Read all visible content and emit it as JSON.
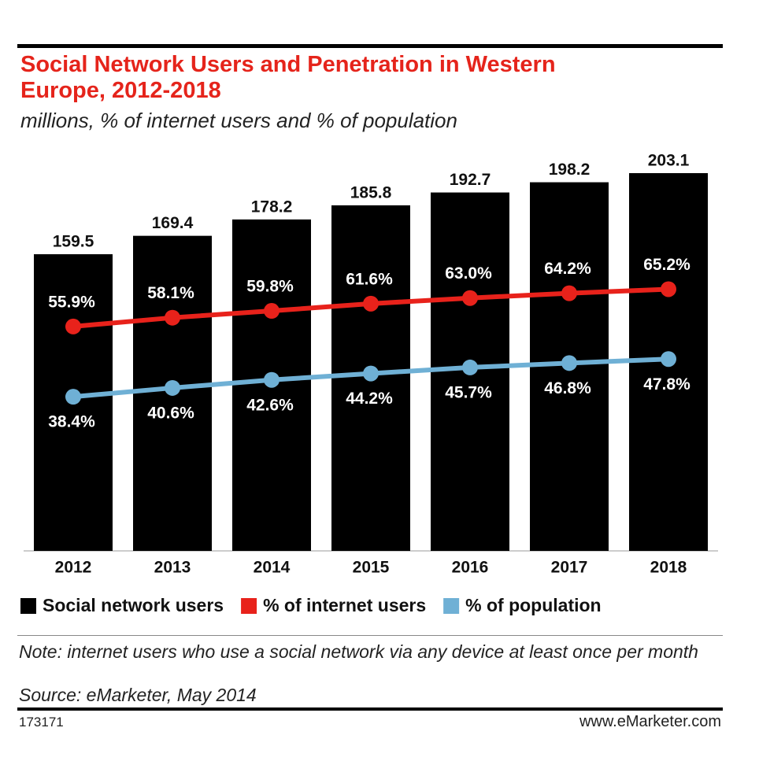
{
  "chart_data": {
    "type": "bar",
    "title": "Social Network Users and Penetration in Western Europe, 2012-2018",
    "subtitle": "millions, % of internet users and % of population",
    "categories": [
      "2012",
      "2013",
      "2014",
      "2015",
      "2016",
      "2017",
      "2018"
    ],
    "series": [
      {
        "name": "Social network users",
        "type": "bar",
        "color": "#000000",
        "values": [
          159.5,
          169.4,
          178.2,
          185.8,
          192.7,
          198.2,
          203.1
        ]
      },
      {
        "name": "% of internet users",
        "type": "line",
        "color": "#e8221b",
        "values": [
          55.9,
          58.1,
          59.8,
          61.6,
          63.0,
          64.2,
          65.2
        ],
        "value_labels": [
          "55.9%",
          "58.1%",
          "59.8%",
          "61.6%",
          "63.0%",
          "64.2%",
          "65.2%"
        ]
      },
      {
        "name": "% of population",
        "type": "line",
        "color": "#6fb0d5",
        "values": [
          38.4,
          40.6,
          42.6,
          44.2,
          45.7,
          46.8,
          47.8
        ],
        "value_labels": [
          "38.4%",
          "40.6%",
          "42.6%",
          "44.2%",
          "45.7%",
          "46.8%",
          "47.8%"
        ]
      }
    ],
    "note": "Note: internet users who use a social network via any device at least once per month",
    "source": "Source: eMarketer, May 2014",
    "chart_id": "173171",
    "website": "www.eMarketer.com"
  }
}
